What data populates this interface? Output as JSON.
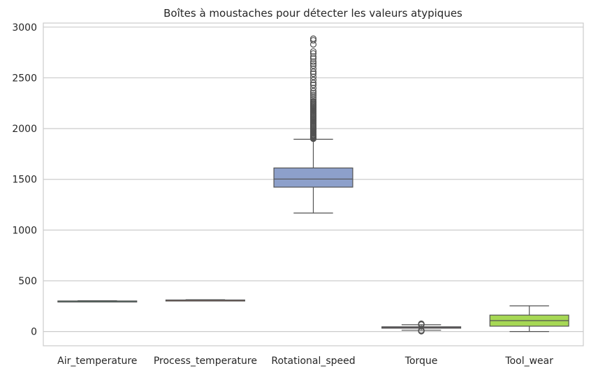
{
  "chart_data": {
    "type": "box",
    "title": "Boîtes à moustaches pour détecter les valeurs atypiques",
    "xlabel": "",
    "ylabel": "",
    "ylim": [
      -140,
      3040
    ],
    "yticks": [
      0,
      500,
      1000,
      1500,
      2000,
      2500,
      3000
    ],
    "grid": true,
    "categories": [
      "Air_temperature",
      "Process_temperature",
      "Rotational_speed",
      "Torque",
      "Tool_wear"
    ],
    "boxes": [
      {
        "name": "Air_temperature",
        "color": "#66c2a5",
        "whisker_low": 295.3,
        "q1": 298.3,
        "median": 300.1,
        "q3": 301.5,
        "whisker_high": 304.5,
        "outliers": []
      },
      {
        "name": "Process_temperature",
        "color": "#fc8d62",
        "whisker_low": 305.7,
        "q1": 308.8,
        "median": 310.1,
        "q3": 311.1,
        "whisker_high": 313.8,
        "outliers": []
      },
      {
        "name": "Rotational_speed",
        "color": "#8da0cb",
        "whisker_low": 1168,
        "q1": 1423,
        "median": 1503,
        "q3": 1612,
        "whisker_high": 1895,
        "outliers": [
          1900,
          1905,
          1910,
          1915,
          1920,
          1925,
          1930,
          1935,
          1940,
          1950,
          1960,
          1970,
          1980,
          1990,
          2000,
          2010,
          2020,
          2030,
          2040,
          2050,
          2060,
          2070,
          2080,
          2090,
          2100,
          2110,
          2120,
          2130,
          2140,
          2150,
          2160,
          2170,
          2180,
          2190,
          2200,
          2210,
          2220,
          2230,
          2240,
          2250,
          2260,
          2270,
          2290,
          2310,
          2330,
          2350,
          2370,
          2400,
          2430,
          2450,
          2480,
          2510,
          2540,
          2560,
          2590,
          2620,
          2640,
          2660,
          2690,
          2710,
          2740,
          2760,
          2830,
          2870,
          2886
        ]
      },
      {
        "name": "Torque",
        "color": "#e78ac3",
        "whisker_low": 12.6,
        "q1": 33.2,
        "median": 40.1,
        "q3": 46.8,
        "whisker_high": 67.2,
        "outliers": [
          3.8,
          6,
          8,
          10,
          11.5,
          68,
          70,
          72,
          74,
          76.6
        ]
      },
      {
        "name": "Tool_wear",
        "color": "#a6d854",
        "whisker_low": 0,
        "q1": 53,
        "median": 108,
        "q3": 162,
        "whisker_high": 253,
        "outliers": []
      }
    ]
  }
}
